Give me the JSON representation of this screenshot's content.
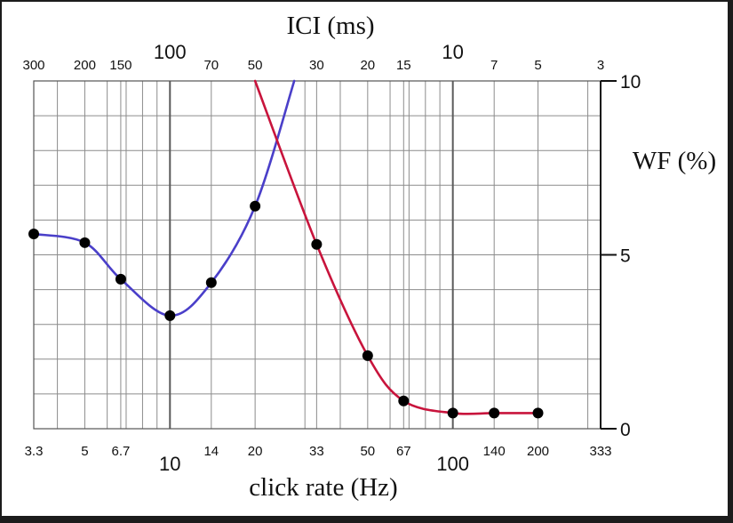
{
  "chart_data": {
    "type": "line",
    "x_scale": "log",
    "x_unit_bottom": "Hz",
    "xlabel": "click rate (Hz)",
    "x2label": "ICI (ms)",
    "ylabel": "WF (%)",
    "xlim": [
      3.3,
      333
    ],
    "ylim": [
      0,
      10
    ],
    "grid": true,
    "bottom_ticks": [
      {
        "value": 3.3,
        "label": "3.3",
        "major": false
      },
      {
        "value": 5,
        "label": "5",
        "major": false
      },
      {
        "value": 6.7,
        "label": "6.7",
        "major": false
      },
      {
        "value": 10,
        "label": "10",
        "major": true
      },
      {
        "value": 14,
        "label": "14",
        "major": false
      },
      {
        "value": 20,
        "label": "20",
        "major": false
      },
      {
        "value": 33,
        "label": "33",
        "major": false
      },
      {
        "value": 50,
        "label": "50",
        "major": false
      },
      {
        "value": 67,
        "label": "67",
        "major": false
      },
      {
        "value": 100,
        "label": "100",
        "major": true
      },
      {
        "value": 140,
        "label": "140",
        "major": false
      },
      {
        "value": 200,
        "label": "200",
        "major": false
      },
      {
        "value": 333,
        "label": "333",
        "major": false
      }
    ],
    "top_ticks": [
      {
        "value": 3.3,
        "label": "300",
        "major": false
      },
      {
        "value": 5,
        "label": "200",
        "major": false
      },
      {
        "value": 6.7,
        "label": "150",
        "major": false
      },
      {
        "value": 10,
        "label": "100",
        "major": true
      },
      {
        "value": 14,
        "label": "70",
        "major": false
      },
      {
        "value": 20,
        "label": "50",
        "major": false
      },
      {
        "value": 33,
        "label": "30",
        "major": false
      },
      {
        "value": 50,
        "label": "20",
        "major": false
      },
      {
        "value": 67,
        "label": "15",
        "major": false
      },
      {
        "value": 100,
        "label": "10",
        "major": true
      },
      {
        "value": 140,
        "label": "7",
        "major": false
      },
      {
        "value": 200,
        "label": "5",
        "major": false
      },
      {
        "value": 333,
        "label": "3",
        "major": false
      }
    ],
    "y_ticks": [
      {
        "value": 0,
        "label": "0"
      },
      {
        "value": 5,
        "label": "5"
      },
      {
        "value": 10,
        "label": "10"
      }
    ],
    "series": [
      {
        "color": "#4a3fc9",
        "points": [
          {
            "x": 3.3,
            "y": 5.6,
            "marker": true
          },
          {
            "x": 5,
            "y": 5.35,
            "marker": true
          },
          {
            "x": 6.7,
            "y": 4.3,
            "marker": true
          },
          {
            "x": 10,
            "y": 3.25,
            "marker": true
          },
          {
            "x": 14,
            "y": 4.2,
            "marker": true
          },
          {
            "x": 20,
            "y": 6.4,
            "marker": true
          },
          {
            "x": 27.5,
            "y": 10,
            "marker": false
          }
        ]
      },
      {
        "color": "#c8143c",
        "points": [
          {
            "x": 20,
            "y": 10,
            "marker": false
          },
          {
            "x": 33,
            "y": 5.3,
            "marker": true
          },
          {
            "x": 50,
            "y": 2.1,
            "marker": true
          },
          {
            "x": 67,
            "y": 0.8,
            "marker": true
          },
          {
            "x": 100,
            "y": 0.45,
            "marker": true
          },
          {
            "x": 140,
            "y": 0.45,
            "marker": true
          },
          {
            "x": 200,
            "y": 0.45,
            "marker": true
          }
        ]
      }
    ]
  }
}
